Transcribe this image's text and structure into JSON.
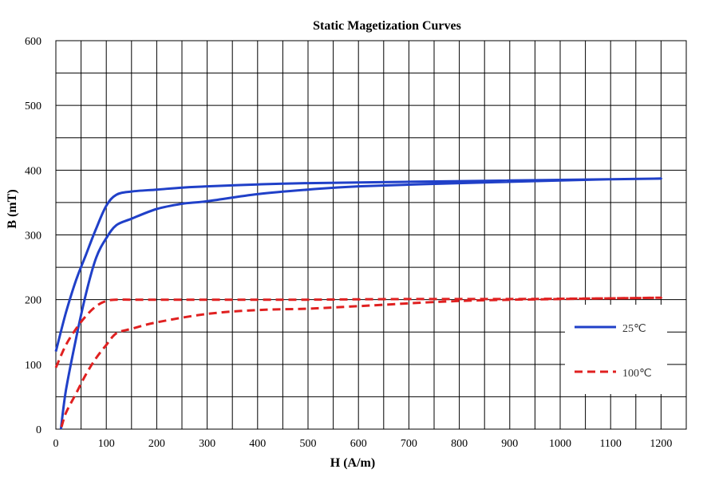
{
  "chart_data": {
    "type": "line",
    "title": "Static Magetization Curves",
    "xlabel": "H (A/m)",
    "ylabel": "B (mT)",
    "xlim": [
      0,
      1250
    ],
    "ylim": [
      0,
      600
    ],
    "xticks": [
      0,
      100,
      200,
      300,
      400,
      500,
      600,
      700,
      800,
      900,
      1000,
      1100,
      1200
    ],
    "yticks": [
      0,
      100,
      200,
      300,
      400,
      500,
      600
    ],
    "grid": true,
    "legend_position": "right",
    "series": [
      {
        "name": "25℃",
        "color": "#2040C8",
        "dash": "solid",
        "x": [
          0,
          20,
          40,
          60,
          80,
          100,
          120,
          150,
          200,
          250,
          300,
          400,
          500,
          700,
          900,
          1100,
          1200,
          1100,
          1000,
          800,
          600,
          500,
          400,
          300,
          250,
          200,
          150,
          120,
          100,
          80,
          60,
          40,
          20,
          10
        ],
        "y": [
          120,
          180,
          230,
          270,
          310,
          345,
          362,
          367,
          370,
          373,
          375,
          378,
          380,
          382,
          384,
          386,
          387,
          386,
          384,
          380,
          375,
          370,
          363,
          352,
          348,
          340,
          325,
          315,
          295,
          265,
          210,
          140,
          60,
          0
        ]
      },
      {
        "name": "100℃",
        "color": "#E02020",
        "dash": "dashed",
        "x": [
          0,
          20,
          40,
          60,
          80,
          100,
          120,
          150,
          200,
          300,
          400,
          500,
          700,
          900,
          1100,
          1200,
          1100,
          1000,
          800,
          600,
          500,
          400,
          300,
          200,
          150,
          120,
          100,
          80,
          60,
          40,
          20,
          10
        ],
        "y": [
          95,
          130,
          155,
          175,
          190,
          198,
          200,
          200,
          200,
          200,
          200,
          200,
          201,
          201,
          202,
          203,
          202,
          201,
          198,
          190,
          186,
          184,
          178,
          165,
          155,
          148,
          130,
          110,
          85,
          55,
          25,
          0
        ]
      }
    ]
  }
}
